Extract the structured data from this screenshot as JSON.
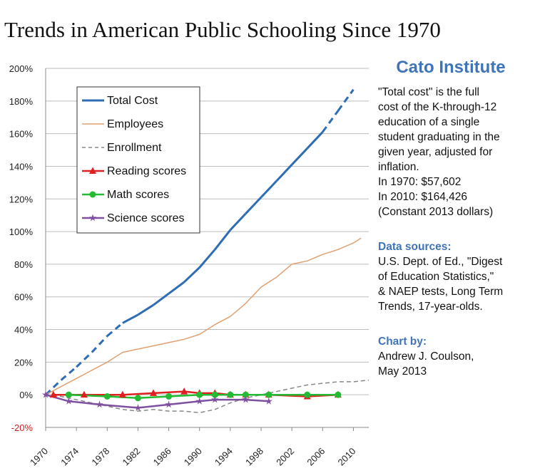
{
  "title": "Trends in American Public Schooling Since 1970",
  "sidebar": {
    "org": "Cato Institute",
    "desc_lines": [
      "\"Total cost\" is the full",
      "cost of the K-through-12",
      "education of a single",
      "student graduating in the",
      "given year, adjusted for",
      "inflation.",
      "In 1970:   $57,602",
      "In 2010: $164,426",
      "(Constant 2013 dollars)"
    ],
    "sources_heading": "Data sources:",
    "sources_lines": [
      "U.S. Dept. of Ed., \"Digest",
      "of Education Statistics,\"",
      "& NAEP tests, Long Term",
      "Trends, 17-year-olds."
    ],
    "credit_heading": "Chart by:",
    "credit_lines": [
      "Andrew J. Coulson,",
      "May 2013"
    ]
  },
  "chart_data": {
    "type": "line",
    "title": "Trends in American Public Schooling Since 1970",
    "xlim": [
      1970,
      2012
    ],
    "ylim": [
      -20,
      200
    ],
    "x_ticks": [
      1970,
      1974,
      1978,
      1982,
      1986,
      1990,
      1994,
      1998,
      2002,
      2006,
      2010
    ],
    "y_ticks": [
      -20,
      0,
      20,
      40,
      60,
      80,
      100,
      120,
      140,
      160,
      180,
      200
    ],
    "y_tick_labels": [
      "-20%",
      "0%",
      "20%",
      "40%",
      "60%",
      "80%",
      "100%",
      "120%",
      "140%",
      "160%",
      "180%",
      "200%"
    ],
    "grid": "horizontal",
    "legend_position": "upper-left",
    "series": [
      {
        "name": "Total Cost",
        "color": "#2e6db4",
        "style": "solid-dashed-ends",
        "points": [
          [
            1970,
            0
          ],
          [
            1972,
            9
          ],
          [
            1974,
            17
          ],
          [
            1976,
            26
          ],
          [
            1978,
            36
          ],
          [
            1980,
            44
          ],
          [
            1982,
            49
          ],
          [
            1984,
            55
          ],
          [
            1986,
            62
          ],
          [
            1988,
            69
          ],
          [
            1990,
            78
          ],
          [
            1992,
            89
          ],
          [
            1994,
            101
          ],
          [
            1996,
            111
          ],
          [
            1998,
            121
          ],
          [
            2000,
            131
          ],
          [
            2002,
            141
          ],
          [
            2004,
            151
          ],
          [
            2006,
            161
          ],
          [
            2008,
            174
          ],
          [
            2010,
            187
          ]
        ],
        "dashed_ranges": [
          [
            1970,
            1980
          ],
          [
            2006,
            2010
          ]
        ]
      },
      {
        "name": "Employees",
        "color": "#e0a070",
        "style": "solid",
        "points": [
          [
            1970,
            0
          ],
          [
            1972,
            5
          ],
          [
            1974,
            10
          ],
          [
            1976,
            15
          ],
          [
            1978,
            20
          ],
          [
            1980,
            26
          ],
          [
            1982,
            28
          ],
          [
            1984,
            30
          ],
          [
            1986,
            32
          ],
          [
            1988,
            34
          ],
          [
            1990,
            37
          ],
          [
            1992,
            43
          ],
          [
            1994,
            48
          ],
          [
            1996,
            56
          ],
          [
            1998,
            66
          ],
          [
            2000,
            72
          ],
          [
            2002,
            80
          ],
          [
            2004,
            82
          ],
          [
            2006,
            86
          ],
          [
            2008,
            89
          ],
          [
            2010,
            93
          ],
          [
            2011,
            96
          ]
        ]
      },
      {
        "name": "Enrollment",
        "color": "#888888",
        "style": "dashed",
        "points": [
          [
            1970,
            0
          ],
          [
            1972,
            -1
          ],
          [
            1974,
            -3
          ],
          [
            1976,
            -5
          ],
          [
            1978,
            -7
          ],
          [
            1980,
            -9
          ],
          [
            1982,
            -10
          ],
          [
            1984,
            -9
          ],
          [
            1986,
            -10
          ],
          [
            1988,
            -10
          ],
          [
            1990,
            -11
          ],
          [
            1992,
            -9
          ],
          [
            1994,
            -5
          ],
          [
            1996,
            -2
          ],
          [
            1998,
            0
          ],
          [
            2000,
            2
          ],
          [
            2002,
            4
          ],
          [
            2004,
            6
          ],
          [
            2006,
            7
          ],
          [
            2008,
            8
          ],
          [
            2010,
            8
          ],
          [
            2012,
            9
          ]
        ]
      },
      {
        "name": "Reading scores",
        "color": "#e02020",
        "marker": "triangle",
        "points": [
          [
            1971,
            0
          ],
          [
            1975,
            0
          ],
          [
            1980,
            0
          ],
          [
            1984,
            1
          ],
          [
            1988,
            2
          ],
          [
            1990,
            1
          ],
          [
            1992,
            1
          ],
          [
            1994,
            0
          ],
          [
            1996,
            0
          ],
          [
            1999,
            0
          ],
          [
            2004,
            -1
          ],
          [
            2008,
            0
          ]
        ]
      },
      {
        "name": "Math scores",
        "color": "#22bb33",
        "marker": "circle",
        "points": [
          [
            1973,
            0
          ],
          [
            1978,
            -1
          ],
          [
            1982,
            -2
          ],
          [
            1986,
            -1
          ],
          [
            1990,
            0
          ],
          [
            1992,
            0
          ],
          [
            1994,
            0
          ],
          [
            1996,
            0
          ],
          [
            1999,
            0
          ],
          [
            2004,
            0
          ],
          [
            2008,
            0
          ]
        ]
      },
      {
        "name": "Science scores",
        "color": "#8050a0",
        "marker": "star",
        "points": [
          [
            1970,
            0
          ],
          [
            1973,
            -4
          ],
          [
            1977,
            -6
          ],
          [
            1982,
            -8
          ],
          [
            1986,
            -6
          ],
          [
            1990,
            -4
          ],
          [
            1992,
            -3
          ],
          [
            1996,
            -3
          ],
          [
            1999,
            -4
          ]
        ]
      }
    ]
  }
}
